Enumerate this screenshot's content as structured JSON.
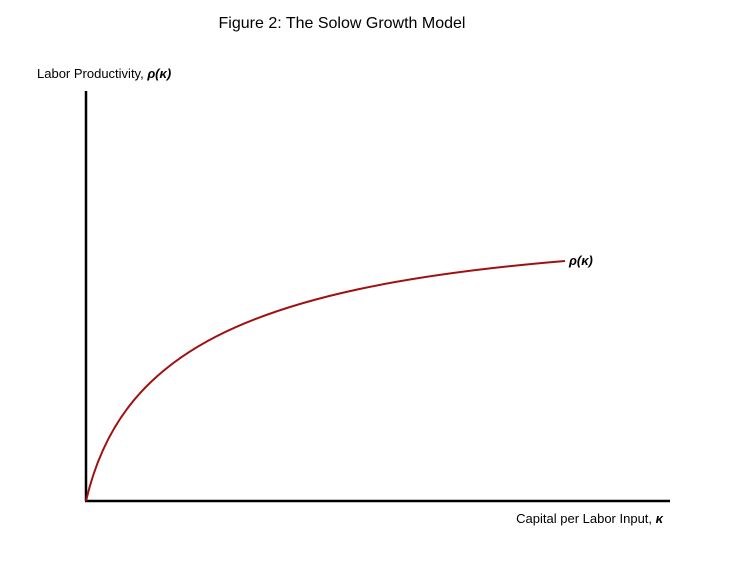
{
  "figure": {
    "title": "Figure 2: The Solow Growth Model",
    "y_axis_label_prefix": "Labor Productivity, ",
    "y_axis_label_symbol": "ρ(κ)",
    "x_axis_label_prefix": "Capital per Labor Input, ",
    "x_axis_label_symbol": "κ",
    "curve_label": "ρ(κ)"
  },
  "colors": {
    "axis": "#000000",
    "curve": "#a01010",
    "background": "#ffffff"
  },
  "chart_data": {
    "type": "line",
    "title": "Figure 2: The Solow Growth Model",
    "xlabel": "Capital per Labor Input, κ",
    "ylabel": "Labor Productivity, ρ(κ)",
    "grid": false,
    "ticks": false,
    "legend": "none",
    "series": [
      {
        "name": "ρ(κ)",
        "shape": "increasing, concave, starting at the origin and flattening toward a plateau"
      }
    ]
  }
}
